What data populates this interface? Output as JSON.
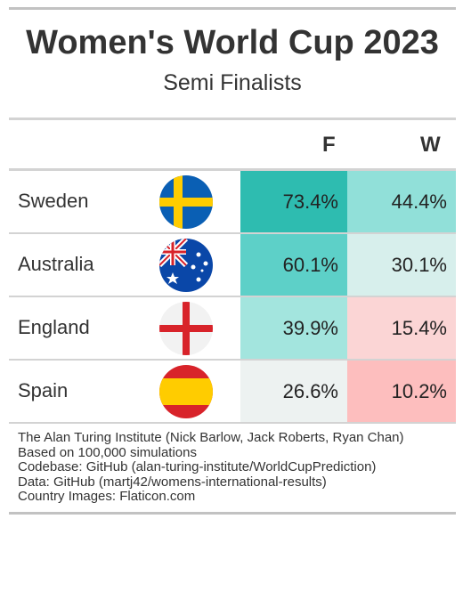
{
  "title": "Women's World Cup 2023",
  "subtitle": "Semi Finalists",
  "columns": {
    "f": "F",
    "w": "W"
  },
  "teams": [
    {
      "name": "Sweden",
      "flag": "sweden-flag-icon",
      "f": "73.4%",
      "w": "44.4%",
      "f_color": "#2ebcb0",
      "w_color": "#91e0d9"
    },
    {
      "name": "Australia",
      "flag": "australia-flag-icon",
      "f": "60.1%",
      "w": "30.1%",
      "f_color": "#5dd0c8",
      "w_color": "#d7efec"
    },
    {
      "name": "England",
      "flag": "england-flag-icon",
      "f": "39.9%",
      "w": "15.4%",
      "f_color": "#a3e5de",
      "w_color": "#fbd5d5"
    },
    {
      "name": "Spain",
      "flag": "spain-flag-icon",
      "f": "26.6%",
      "w": "10.2%",
      "f_color": "#edf2f1",
      "w_color": "#fdbebe"
    }
  ],
  "footnotes": [
    "The Alan Turing Institute (Nick Barlow, Jack Roberts, Ryan Chan)",
    "Based on 100,000 simulations",
    "Codebase: GitHub (alan-turing-institute/WorldCupPrediction)",
    "Data: GitHub (martj42/womens-international-results)",
    "Country Images: Flaticon.com"
  ]
}
